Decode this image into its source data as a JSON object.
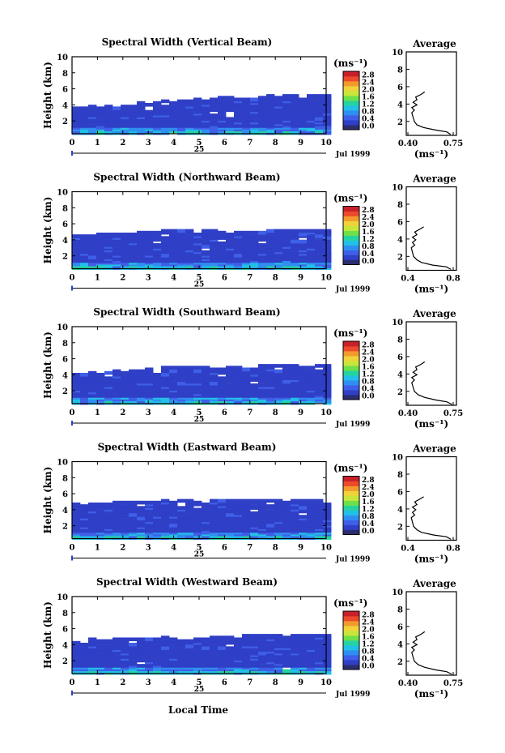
{
  "figure": {
    "xlabel": "Local Time",
    "date_label": "Jul 1999",
    "day_label": "25"
  },
  "chart_data": [
    {
      "type": "heatmap",
      "title": "Spectral Width (Vertical Beam)",
      "ylabel": "Height (km)",
      "xlabel": "Local Time",
      "x_ticks": [
        "0",
        "1",
        "2",
        "3",
        "4",
        "5",
        "6",
        "7",
        "8",
        "9",
        "10"
      ],
      "y_ticks": [
        "2",
        "4",
        "6",
        "8",
        "10"
      ],
      "xlim": [
        0,
        10
      ],
      "ylim": [
        0.4,
        10
      ],
      "colorbar_unit": "(ms⁻¹)",
      "colorbar_ticks": [
        "0.0",
        "0.4",
        "0.8",
        "1.2",
        "1.6",
        "2.0",
        "2.4",
        "2.8"
      ],
      "top_height_km": [
        3.6,
        3.9,
        4.0,
        4.3,
        4.6,
        4.9,
        5.0,
        5.1,
        5.2,
        5.3,
        5.3
      ],
      "average": {
        "title": "Average",
        "unit": "(ms⁻¹)",
        "x_ticks": [
          "0.40",
          "0.75"
        ],
        "xlim": [
          0.4,
          0.75
        ],
        "y_ticks": [
          "2",
          "4",
          "6",
          "8",
          "10"
        ],
        "height_km": [
          0.5,
          0.8,
          1.0,
          1.3,
          1.6,
          2.0,
          2.5,
          3.0,
          3.3,
          3.6,
          3.9,
          4.2,
          4.5,
          4.8,
          5.1,
          5.4
        ],
        "value": [
          0.73,
          0.7,
          0.62,
          0.52,
          0.47,
          0.45,
          0.44,
          0.43,
          0.45,
          0.43,
          0.47,
          0.44,
          0.47,
          0.46,
          0.5,
          0.53
        ]
      }
    },
    {
      "type": "heatmap",
      "title": "Spectral Width (Northward Beam)",
      "ylabel": "Height (km)",
      "xlabel": "Local Time",
      "x_ticks": [
        "0",
        "1",
        "2",
        "3",
        "4",
        "5",
        "6",
        "7",
        "8",
        "9",
        "10"
      ],
      "y_ticks": [
        "2",
        "4",
        "6",
        "8",
        "10"
      ],
      "xlim": [
        0,
        10
      ],
      "ylim": [
        0.4,
        10
      ],
      "colorbar_unit": "(ms⁻¹)",
      "colorbar_ticks": [
        "0.0",
        "0.4",
        "0.8",
        "1.2",
        "1.6",
        "2.0",
        "2.4",
        "2.8"
      ],
      "top_height_km": [
        4.6,
        4.8,
        4.9,
        5.1,
        5.2,
        5.2,
        5.1,
        5.1,
        5.2,
        5.3,
        5.3
      ],
      "average": {
        "title": "Average",
        "unit": "(ms⁻¹)",
        "x_ticks": [
          "0.4",
          "0.8"
        ],
        "xlim": [
          0.4,
          0.8
        ],
        "y_ticks": [
          "2",
          "4",
          "6",
          "8",
          "10"
        ],
        "height_km": [
          0.5,
          0.8,
          1.0,
          1.3,
          1.6,
          2.0,
          2.5,
          3.0,
          3.3,
          3.6,
          3.9,
          4.2,
          4.5,
          4.8,
          5.1,
          5.4
        ],
        "value": [
          0.78,
          0.74,
          0.62,
          0.52,
          0.48,
          0.45,
          0.44,
          0.43,
          0.46,
          0.44,
          0.47,
          0.44,
          0.48,
          0.46,
          0.5,
          0.54
        ]
      }
    },
    {
      "type": "heatmap",
      "title": "Spectral Width (Southward Beam)",
      "ylabel": "Height (km)",
      "xlabel": "Local Time",
      "x_ticks": [
        "0",
        "1",
        "2",
        "3",
        "4",
        "5",
        "6",
        "7",
        "8",
        "9",
        "10"
      ],
      "y_ticks": [
        "2",
        "4",
        "6",
        "8",
        "10"
      ],
      "xlim": [
        0,
        10
      ],
      "ylim": [
        0.4,
        10
      ],
      "colorbar_unit": "(ms⁻¹)",
      "colorbar_ticks": [
        "0.0",
        "0.4",
        "0.8",
        "1.2",
        "1.6",
        "2.0",
        "2.4",
        "2.8"
      ],
      "top_height_km": [
        4.2,
        4.4,
        4.6,
        4.8,
        5.0,
        5.0,
        5.1,
        5.2,
        5.2,
        5.3,
        5.3
      ],
      "average": {
        "title": "Average",
        "unit": "(ms⁻¹)",
        "x_ticks": [
          "0.40",
          "0.75"
        ],
        "xlim": [
          0.4,
          0.75
        ],
        "y_ticks": [
          "2",
          "4",
          "6",
          "8",
          "10"
        ],
        "height_km": [
          0.5,
          0.8,
          1.0,
          1.3,
          1.6,
          2.0,
          2.5,
          3.0,
          3.3,
          3.6,
          3.9,
          4.2,
          4.5,
          4.8,
          5.1,
          5.4
        ],
        "value": [
          0.74,
          0.7,
          0.62,
          0.53,
          0.48,
          0.45,
          0.44,
          0.43,
          0.45,
          0.43,
          0.47,
          0.44,
          0.47,
          0.46,
          0.5,
          0.53
        ]
      }
    },
    {
      "type": "heatmap",
      "title": "Spectral Width (Eastward Beam)",
      "ylabel": "Height (km)",
      "xlabel": "Local Time",
      "x_ticks": [
        "0",
        "1",
        "2",
        "3",
        "4",
        "5",
        "6",
        "7",
        "8",
        "9",
        "10"
      ],
      "y_ticks": [
        "2",
        "4",
        "6",
        "8",
        "10"
      ],
      "xlim": [
        0,
        10
      ],
      "ylim": [
        0.4,
        10
      ],
      "colorbar_unit": "(ms⁻¹)",
      "colorbar_ticks": [
        "0.0",
        "0.4",
        "0.8",
        "1.2",
        "1.6",
        "2.0",
        "2.4",
        "2.8"
      ],
      "top_height_km": [
        4.8,
        4.9,
        5.0,
        5.1,
        5.2,
        5.2,
        5.2,
        5.2,
        5.3,
        5.3,
        5.3
      ],
      "average": {
        "title": "Average",
        "unit": "(ms⁻¹)",
        "x_ticks": [
          "0.4",
          "0.8"
        ],
        "xlim": [
          0.4,
          0.8
        ],
        "y_ticks": [
          "2",
          "4",
          "6",
          "8",
          "10"
        ],
        "height_km": [
          0.5,
          0.8,
          1.0,
          1.3,
          1.6,
          2.0,
          2.5,
          3.0,
          3.3,
          3.6,
          3.9,
          4.2,
          4.5,
          4.8,
          5.1,
          5.4
        ],
        "value": [
          0.78,
          0.74,
          0.63,
          0.52,
          0.48,
          0.45,
          0.44,
          0.43,
          0.46,
          0.44,
          0.47,
          0.44,
          0.48,
          0.46,
          0.5,
          0.54
        ]
      }
    },
    {
      "type": "heatmap",
      "title": "Spectral Width (Westward Beam)",
      "ylabel": "Height (km)",
      "xlabel": "Local Time",
      "x_ticks": [
        "0",
        "1",
        "2",
        "3",
        "4",
        "5",
        "6",
        "7",
        "8",
        "9",
        "10"
      ],
      "y_ticks": [
        "2",
        "4",
        "6",
        "8",
        "10"
      ],
      "xlim": [
        0,
        10
      ],
      "ylim": [
        0.4,
        10
      ],
      "colorbar_unit": "(ms⁻¹)",
      "colorbar_ticks": [
        "0.0",
        "0.4",
        "0.8",
        "1.2",
        "1.6",
        "2.0",
        "2.4",
        "2.8"
      ],
      "top_height_km": [
        4.6,
        4.7,
        4.8,
        4.9,
        5.0,
        5.1,
        5.1,
        5.2,
        5.2,
        5.3,
        5.3
      ],
      "average": {
        "title": "Average",
        "unit": "(ms⁻¹)",
        "x_ticks": [
          "0.40",
          "0.75"
        ],
        "xlim": [
          0.4,
          0.75
        ],
        "y_ticks": [
          "2",
          "4",
          "6",
          "8",
          "10"
        ],
        "height_km": [
          0.5,
          0.8,
          1.0,
          1.3,
          1.6,
          2.0,
          2.5,
          3.0,
          3.3,
          3.6,
          3.9,
          4.2,
          4.5,
          4.8,
          5.1,
          5.4
        ],
        "value": [
          0.74,
          0.7,
          0.62,
          0.53,
          0.48,
          0.45,
          0.44,
          0.43,
          0.45,
          0.43,
          0.47,
          0.44,
          0.47,
          0.46,
          0.5,
          0.53
        ]
      }
    }
  ]
}
